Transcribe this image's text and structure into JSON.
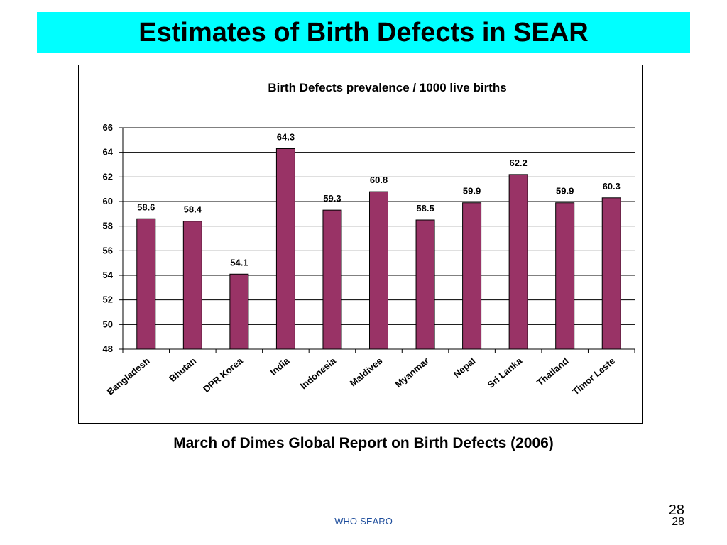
{
  "slide": {
    "title": "Estimates of Birth Defects in SEAR",
    "source": "March of Dimes Global Report on Birth Defects (2006)",
    "footer": "WHO-SEARO",
    "page_number_top": "28",
    "page_number_bottom": "28",
    "title_bar_color": "#00FFFF"
  },
  "chart_data": {
    "type": "bar",
    "title": "Birth Defects prevalence / 1000 live births",
    "xlabel": "",
    "ylabel": "",
    "categories": [
      "Bangladesh",
      "Bhutan",
      "DPR Korea",
      "India",
      "Indonesia",
      "Maldives",
      "Myanmar",
      "Nepal",
      "Sri Lanka",
      "Thailand",
      "Timor Leste"
    ],
    "values": [
      58.6,
      58.4,
      54.1,
      64.3,
      59.3,
      60.8,
      58.5,
      59.9,
      62.2,
      59.9,
      60.3
    ],
    "data_labels": [
      "58.6",
      "58.4",
      "54.1",
      "64.3",
      "59.3",
      "60.8",
      "58.5",
      "59.9",
      "62.2",
      "59.9",
      "60.3"
    ],
    "ylim": [
      48,
      66
    ],
    "yticks": [
      48,
      50,
      52,
      54,
      56,
      58,
      60,
      62,
      64,
      66
    ],
    "grid": true,
    "legend": "none",
    "bar_color": "#993366"
  }
}
